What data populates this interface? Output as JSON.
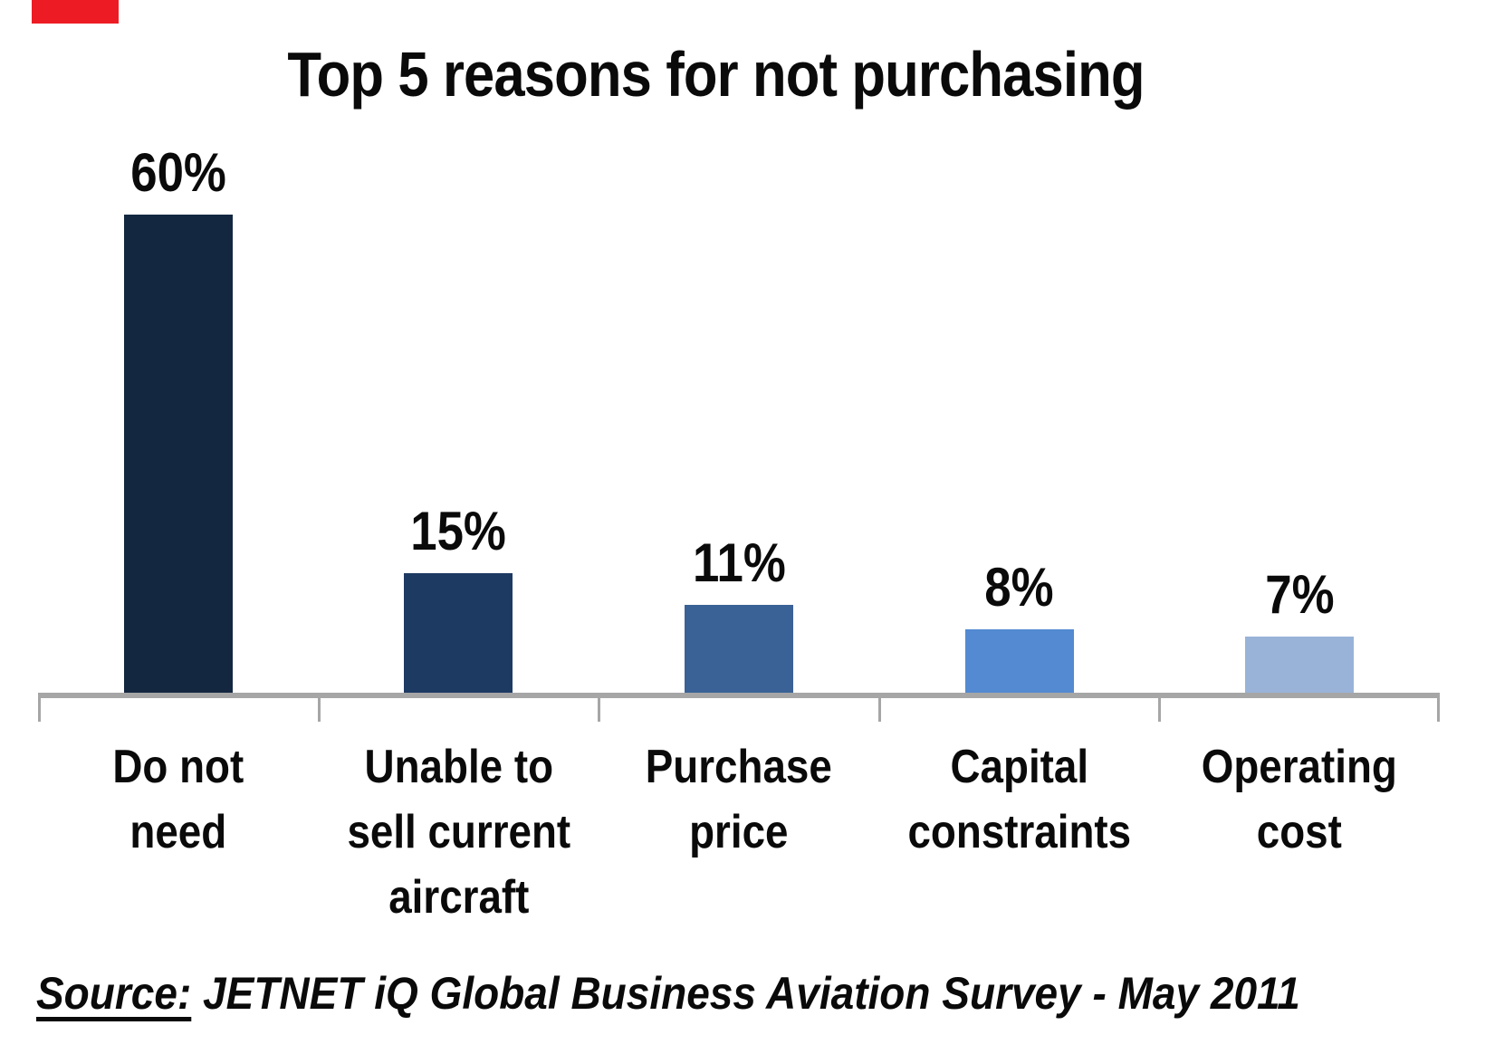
{
  "title": "Top 5 reasons for not purchasing",
  "chart_data": {
    "type": "bar",
    "title": "Top 5 reasons for not purchasing",
    "categories": [
      "Do not need",
      "Unable to sell current aircraft",
      "Purchase price",
      "Capital constraints",
      "Operating cost"
    ],
    "categories_display": [
      "Do not\nneed",
      "Unable to\nsell current\naircraft",
      "Purchase\nprice",
      "Capital\nconstraints",
      "Operating\ncost"
    ],
    "values": [
      60,
      15,
      11,
      8,
      7
    ],
    "value_labels": [
      "60%",
      "15%",
      "11%",
      "8%",
      "7%"
    ],
    "unit": "%",
    "xlabel": "",
    "ylabel": "",
    "ylim": [
      0,
      62
    ],
    "grid": false,
    "legend": false,
    "data_labels": true,
    "bar_colors": [
      "#142740",
      "#1d3a62",
      "#3a6296",
      "#538ad1",
      "#99b3d8"
    ],
    "axis_color": "#a6a6a6"
  },
  "source": {
    "label": "Source:",
    "rest": " JETNET iQ Global Business Aviation Survey - May 2011"
  },
  "decor": {
    "red_shape_color": "#ed1c24"
  }
}
